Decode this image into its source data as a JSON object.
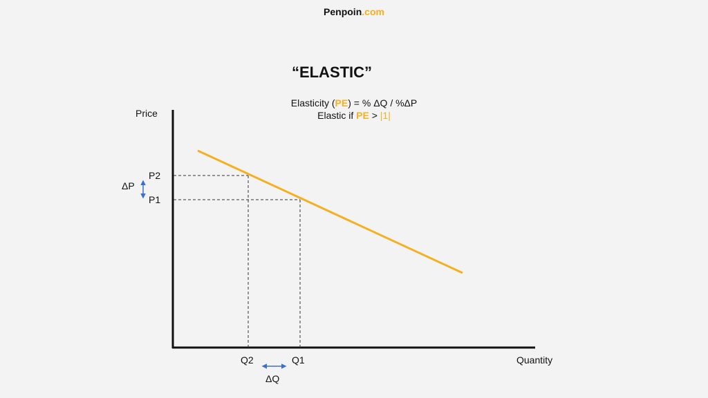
{
  "brand": {
    "name": "Penpoin",
    "suffix": ".com"
  },
  "title": "“ELASTIC”",
  "formula": {
    "line1_a": "Elasticity (",
    "line1_pe": "PE",
    "line1_b": ") = % ΔQ / %ΔP",
    "line2_a": "Elastic if ",
    "line2_pe": "PE",
    "line2_b": " > ",
    "line2_c": "|1|"
  },
  "axes": {
    "y_label": "Price",
    "x_label": "Quantity"
  },
  "markers": {
    "p2": "P2",
    "p1": "P1",
    "q2": "Q2",
    "q1": "Q1",
    "delta_p": "ΔP",
    "delta_q": "ΔQ"
  },
  "colors": {
    "demand_line": "#f5b021",
    "arrow": "#3a6fd8",
    "axis": "#111111"
  }
}
